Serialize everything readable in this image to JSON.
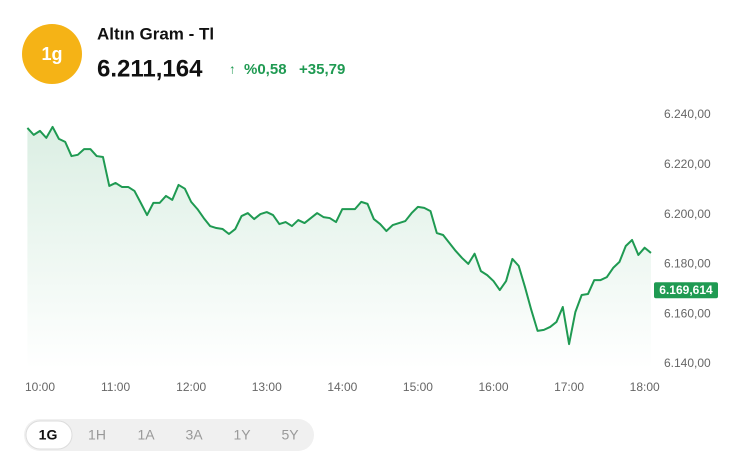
{
  "header": {
    "icon": "1g",
    "title": "Altın Gram - Tl",
    "price": "6.211,164",
    "arrow": "↑",
    "change_percent": "%0,58",
    "change_value": "+35,79"
  },
  "range_buttons": [
    "1G",
    "1H",
    "1A",
    "3A",
    "1Y",
    "5Y"
  ],
  "chart_data": {
    "type": "line",
    "x": [
      590,
      595,
      600,
      605,
      610,
      615,
      620,
      625,
      630,
      635,
      640,
      645,
      650,
      655,
      660,
      665,
      670,
      675,
      680,
      685,
      690,
      695,
      700,
      705,
      710,
      715,
      720,
      725,
      730,
      735,
      740,
      745,
      750,
      755,
      760,
      765,
      770,
      775,
      780,
      785,
      790,
      795,
      800,
      805,
      810,
      815,
      820,
      825,
      830,
      835,
      840,
      845,
      850,
      855,
      860,
      865,
      870,
      875,
      880,
      885,
      890,
      895,
      900,
      905,
      910,
      915,
      920,
      925,
      930,
      935,
      940,
      945,
      950,
      955,
      960,
      965,
      970,
      975,
      980,
      985,
      990,
      995,
      1000,
      1005,
      1010,
      1015,
      1020,
      1025,
      1030,
      1035,
      1040,
      1045,
      1050,
      1055,
      1060,
      1065,
      1070,
      1075,
      1080,
      1085
    ],
    "series": [
      {
        "color": "#1f9a52",
        "values": [
          6234.8,
          6232.0,
          6233.6,
          6230.8,
          6235.2,
          6230.4,
          6229.2,
          6223.5,
          6224.0,
          6226.3,
          6226.3,
          6223.5,
          6223.1,
          6211.5,
          6212.7,
          6211.1,
          6211.1,
          6209.5,
          6204.7,
          6199.8,
          6204.7,
          6204.7,
          6207.5,
          6205.9,
          6211.9,
          6210.4,
          6205.1,
          6202.2,
          6198.6,
          6195.4,
          6194.6,
          6194.2,
          6192.2,
          6194.2,
          6199.4,
          6200.6,
          6198.2,
          6200.2,
          6201.0,
          6199.8,
          6196.2,
          6197.0,
          6195.4,
          6197.8,
          6196.6,
          6198.6,
          6200.6,
          6199.0,
          6198.6,
          6197.0,
          6202.2,
          6202.2,
          6202.2,
          6205.1,
          6204.3,
          6198.2,
          6196.2,
          6193.4,
          6195.8,
          6196.6,
          6197.4,
          6200.6,
          6203.1,
          6202.7,
          6201.4,
          6192.6,
          6191.8,
          6188.6,
          6185.4,
          6182.6,
          6180.2,
          6184.3,
          6177.3,
          6175.7,
          6173.3,
          6169.7,
          6173.3,
          6182.2,
          6179.4,
          6170.9,
          6161.7,
          6153.3,
          6153.7,
          6154.9,
          6156.9,
          6162.9,
          6148.0,
          6160.9,
          6167.7,
          6168.1,
          6173.7,
          6173.7,
          6174.9,
          6178.6,
          6181.0,
          6187.4,
          6189.8,
          6183.8,
          6186.7,
          6184.6
        ]
      }
    ],
    "xlim": [
      585,
      1089
    ],
    "xticks": [
      {
        "value": 600,
        "label": "10:00"
      },
      {
        "value": 660,
        "label": "11:00"
      },
      {
        "value": 720,
        "label": "12:00"
      },
      {
        "value": 780,
        "label": "13:00"
      },
      {
        "value": 840,
        "label": "14:00"
      },
      {
        "value": 900,
        "label": "15:00"
      },
      {
        "value": 960,
        "label": "16:00"
      },
      {
        "value": 1020,
        "label": "17:00"
      },
      {
        "value": 1080,
        "label": "18:00"
      }
    ],
    "ylim": [
      6138,
      6244
    ],
    "yticks": [
      {
        "value": 6140,
        "label": "6.140,00"
      },
      {
        "value": 6160,
        "label": "6.160,00"
      },
      {
        "value": 6180,
        "label": "6.180,00"
      },
      {
        "value": 6200,
        "label": "6.200,00"
      },
      {
        "value": 6220,
        "label": "6.220,00"
      },
      {
        "value": 6240,
        "label": "6.240,00"
      }
    ],
    "price_tag": {
      "value": 6169.614,
      "label": "6.169,614"
    },
    "grid": false
  }
}
